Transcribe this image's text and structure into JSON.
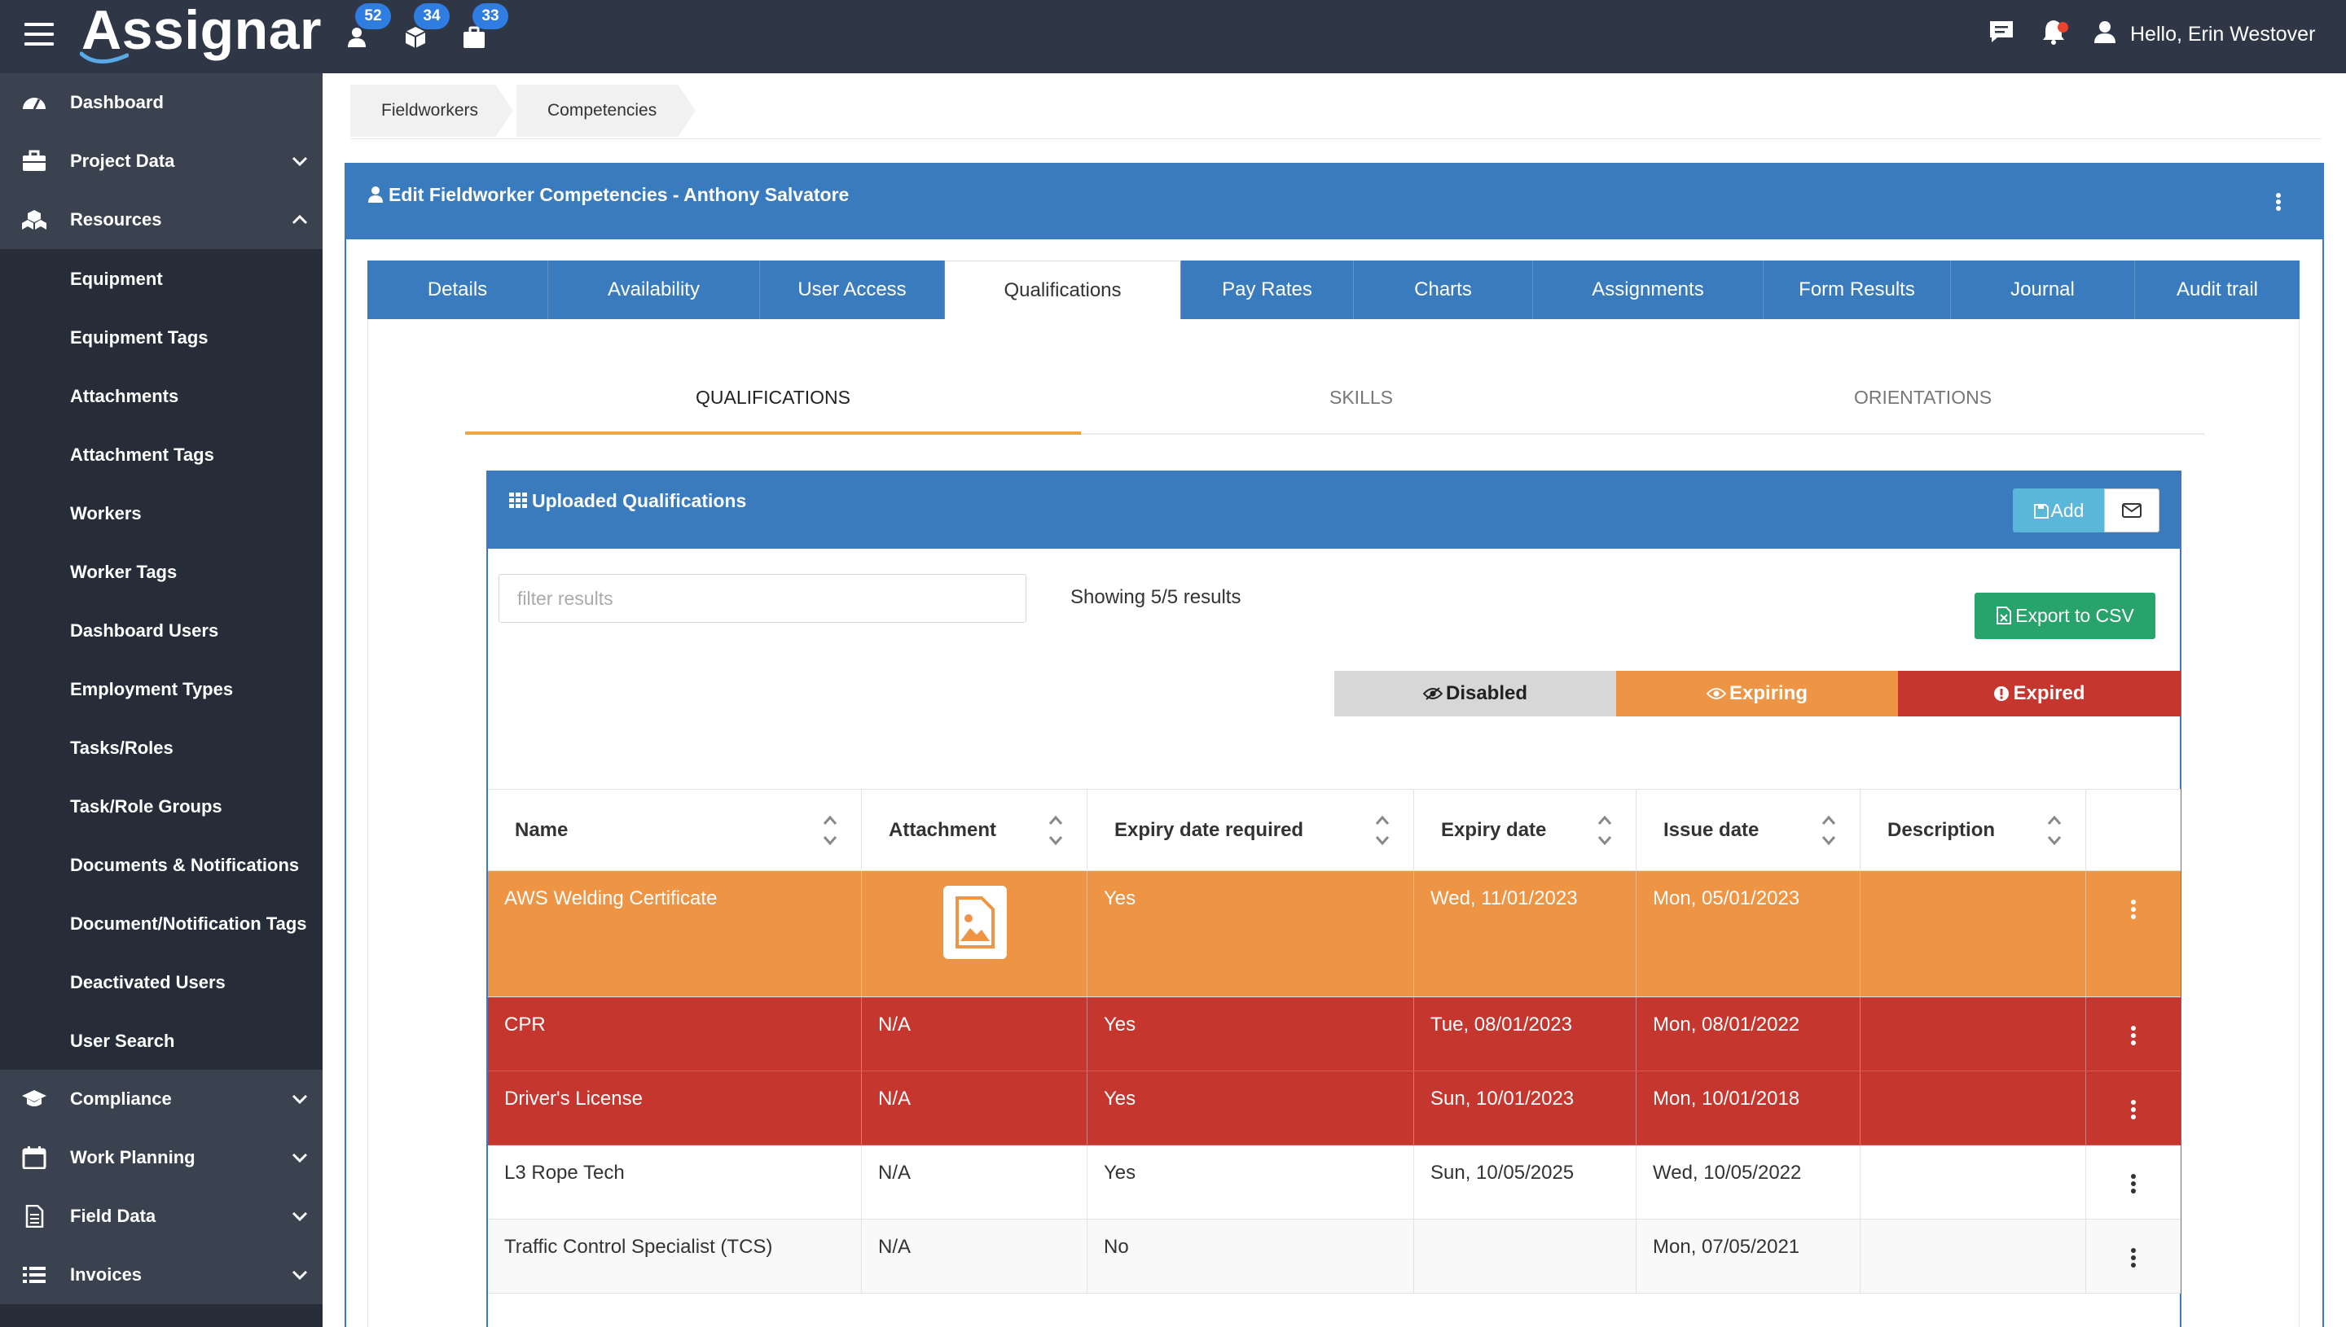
{
  "app": {
    "logo_text": "Assignar",
    "counters": [
      {
        "icon": "user-icon",
        "count": "52"
      },
      {
        "icon": "cube-icon",
        "count": "34"
      },
      {
        "icon": "briefcase-icon",
        "count": "33"
      }
    ],
    "greeting": "Hello, Erin Westover"
  },
  "sidebar": {
    "items": [
      {
        "label": "Dashboard",
        "icon": "dashboard-icon"
      },
      {
        "label": "Project Data",
        "icon": "briefcase-icon"
      },
      {
        "label": "Resources",
        "icon": "cubes-icon"
      },
      {
        "label": "Compliance",
        "icon": "graduation-cap-icon"
      },
      {
        "label": "Work Planning",
        "icon": "calendar-icon"
      },
      {
        "label": "Field Data",
        "icon": "document-icon"
      },
      {
        "label": "Invoices",
        "icon": "list-icon"
      }
    ],
    "resources_sub": [
      "Equipment",
      "Equipment Tags",
      "Attachments",
      "Attachment Tags",
      "Workers",
      "Worker Tags",
      "Dashboard Users",
      "Employment Types",
      "Tasks/Roles",
      "Task/Role Groups",
      "Documents & Notifications",
      "Document/Notification Tags",
      "Deactivated Users",
      "User Search"
    ]
  },
  "breadcrumb": [
    "Fieldworkers",
    "Competencies"
  ],
  "panel": {
    "title": "Edit Fieldworker Competencies - Anthony Salvatore"
  },
  "tabs": [
    "Details",
    "Availability",
    "User Access",
    "Qualifications",
    "Pay Rates",
    "Charts",
    "Assignments",
    "Form Results",
    "Journal",
    "Audit trail"
  ],
  "active_tab": "Qualifications",
  "subtabs": [
    "QUALIFICATIONS",
    "SKILLS",
    "ORIENTATIONS"
  ],
  "active_subtab": "QUALIFICATIONS",
  "box": {
    "title": "Uploaded Qualifications",
    "add_label": "Add",
    "filter_placeholder": "filter results",
    "showing": "Showing 5/5 results",
    "export_label": "Export to CSV",
    "legend": {
      "disabled": "Disabled",
      "expiring": "Expiring",
      "expired": "Expired"
    }
  },
  "table": {
    "columns": [
      "Name",
      "Attachment",
      "Expiry date required",
      "Expiry date",
      "Issue date",
      "Description"
    ],
    "rows": [
      {
        "status": "expiring",
        "name": "AWS Welding Certificate",
        "attachment": "",
        "expiry_required": "Yes",
        "expiry_date": "Wed, 11/01/2023",
        "issue_date": "Mon, 05/01/2023",
        "description": ""
      },
      {
        "status": "expired",
        "name": "CPR",
        "attachment": "N/A",
        "expiry_required": "Yes",
        "expiry_date": "Tue, 08/01/2023",
        "issue_date": "Mon, 08/01/2022",
        "description": ""
      },
      {
        "status": "expired",
        "name": "Driver's License",
        "attachment": "N/A",
        "expiry_required": "Yes",
        "expiry_date": "Sun, 10/01/2023",
        "issue_date": "Mon, 10/01/2018",
        "description": ""
      },
      {
        "status": "active",
        "name": "L3 Rope Tech",
        "attachment": "N/A",
        "expiry_required": "Yes",
        "expiry_date": "Sun, 10/05/2025",
        "issue_date": "Wed, 10/05/2022",
        "description": ""
      },
      {
        "status": "active",
        "name": "Traffic Control Specialist (TCS)",
        "attachment": "N/A",
        "expiry_required": "No",
        "expiry_date": "",
        "issue_date": "Mon, 07/05/2021",
        "description": ""
      }
    ]
  },
  "colors": {
    "topbar": "#2f3747",
    "sidebar": "#262d39",
    "primary": "#3a7bbd",
    "expiring": "#ee9445",
    "expired": "#c4362e",
    "export": "#27a36b"
  }
}
